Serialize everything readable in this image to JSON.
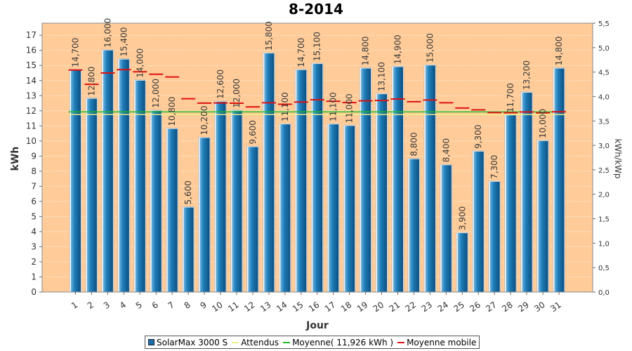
{
  "chart_data": {
    "type": "bar",
    "title": "8-2014",
    "xlabel": "Jour",
    "ylabel": "kWh",
    "ylabel_right": "kWh/kWp",
    "ylim": [
      0,
      17.8
    ],
    "ylim_right": [
      0,
      5.5
    ],
    "y_ticks": [
      "0",
      "1",
      "2",
      "3",
      "4",
      "5",
      "6",
      "7",
      "8",
      "9",
      "10",
      "11",
      "12",
      "13",
      "14",
      "15",
      "16",
      "17"
    ],
    "y_ticks_right": [
      "0,0",
      "0,5",
      "1,0",
      "1,5",
      "2,0",
      "2,5",
      "3,0",
      "3,5",
      "4,0",
      "4,5",
      "5,0",
      "5,5"
    ],
    "categories": [
      "1",
      "2",
      "3",
      "4",
      "5",
      "6",
      "7",
      "8",
      "9",
      "10",
      "11",
      "12",
      "13",
      "14",
      "15",
      "16",
      "17",
      "18",
      "19",
      "20",
      "21",
      "22",
      "23",
      "24",
      "25",
      "26",
      "27",
      "28",
      "29",
      "30",
      "31"
    ],
    "series": [
      {
        "name": "SolarMax 3000 S",
        "kind": "bar",
        "values": [
          14.7,
          12.8,
          16.0,
          15.4,
          14.0,
          12.0,
          10.8,
          5.6,
          10.2,
          12.6,
          12.0,
          9.6,
          15.8,
          11.1,
          14.7,
          15.1,
          11.1,
          11.0,
          14.8,
          13.1,
          14.9,
          8.8,
          15.0,
          8.4,
          3.9,
          9.3,
          7.3,
          11.7,
          13.2,
          10.0,
          14.8
        ],
        "labels": [
          "14,700",
          "12,800",
          "16,000",
          "15,400",
          "14,000",
          "12,000",
          "10,800",
          "5,600",
          "10,200",
          "12,600",
          "12,000",
          "9,600",
          "15,800",
          "11,100",
          "14,700",
          "15,100",
          "11,100",
          "11,000",
          "14,800",
          "13,100",
          "14,900",
          "8,800",
          "15,000",
          "8,400",
          "3,900",
          "9,300",
          "7,300",
          "11,700",
          "13,200",
          "10,000",
          "14,800"
        ]
      },
      {
        "name": "Attendus",
        "kind": "line",
        "value": 11.75
      },
      {
        "name": "Moyenne( 11,926 kWh )",
        "kind": "line",
        "value": 11.926
      },
      {
        "name": "Moyenne mobile",
        "kind": "step",
        "values": [
          14.7,
          13.75,
          14.5,
          14.72,
          14.58,
          14.42,
          14.24,
          12.8,
          12.51,
          12.52,
          12.5,
          12.26,
          12.53,
          12.43,
          12.58,
          12.73,
          12.63,
          12.54,
          12.66,
          12.68,
          12.78,
          12.6,
          12.71,
          12.53,
          12.18,
          12.06,
          11.88,
          11.87,
          11.92,
          11.86,
          11.93
        ]
      }
    ],
    "colors": {
      "plot_bg": "#ffcc99",
      "bar": "#1a6fa8",
      "attendus": "#eeee88",
      "moyenne": "#22bb22",
      "mobile": "#dd1111"
    }
  },
  "legend": [
    {
      "label": "SolarMax 3000 S",
      "swatch": "box"
    },
    {
      "label": "Attendus",
      "swatch": "line"
    },
    {
      "label": "Moyenne( 11,926 kWh )",
      "swatch": "line"
    },
    {
      "label": "Moyenne mobile",
      "swatch": "line"
    }
  ]
}
